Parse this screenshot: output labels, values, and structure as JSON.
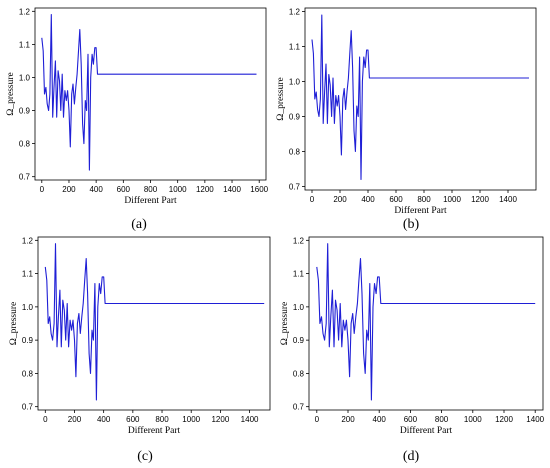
{
  "chart_data": [
    {
      "type": "line",
      "caption": "(a)",
      "xlabel": "Different Part",
      "ylabel": "Ω_pressure",
      "xlim": [
        -50,
        1650
      ],
      "ylim": [
        0.69,
        1.21
      ],
      "xticks": [
        0,
        200,
        400,
        600,
        800,
        1000,
        1200,
        1400,
        1600
      ],
      "yticks": [
        0.7,
        0.8,
        0.9,
        1.0,
        1.1,
        1.2
      ],
      "ytick_labels": [
        "0.7",
        "0.8",
        "0.9",
        "1.0",
        "1.1",
        "1.2"
      ],
      "grid": false,
      "color": "#1f1fd6",
      "series": [
        {
          "x": [
            0,
            10,
            20,
            30,
            40,
            50,
            60,
            70,
            80,
            90,
            100,
            110,
            120,
            130,
            140,
            150,
            160,
            170,
            180,
            190,
            200,
            210,
            220,
            230,
            240,
            250,
            260,
            270,
            280,
            290,
            300,
            310,
            320,
            330,
            340,
            350,
            360,
            370,
            380,
            390,
            400,
            410,
            420,
            430,
            440,
            450,
            460,
            470,
            1580
          ],
          "y": [
            1.12,
            1.08,
            0.95,
            0.97,
            0.92,
            0.9,
            0.95,
            1.19,
            0.88,
            0.97,
            1.05,
            0.88,
            1.02,
            0.99,
            0.9,
            1.01,
            0.88,
            0.96,
            0.93,
            0.96,
            0.9,
            0.79,
            0.95,
            0.98,
            0.92,
            0.97,
            1.01,
            1.08,
            1.145,
            1.04,
            0.86,
            0.8,
            0.93,
            0.9,
            1.07,
            0.72,
            1.0,
            1.07,
            1.04,
            1.09,
            1.09,
            1.01,
            1.01,
            1.01,
            1.01,
            1.01,
            1.01,
            1.01,
            1.01
          ]
        }
      ]
    },
    {
      "type": "line",
      "caption": "(b)",
      "xlabel": "Different Part",
      "ylabel": "Ω_pressure",
      "xlim": [
        -50,
        1600
      ],
      "ylim": [
        0.69,
        1.21
      ],
      "xticks": [
        0,
        200,
        400,
        600,
        800,
        1000,
        1200,
        1400
      ],
      "yticks": [
        0.7,
        0.8,
        0.9,
        1.0,
        1.1,
        1.2
      ],
      "ytick_labels": [
        "0.7",
        "0.8",
        "0.9",
        "1.0",
        "1.1",
        "1.2"
      ],
      "grid": false,
      "color": "#1f1fd6",
      "series": [
        {
          "x": [
            0,
            10,
            20,
            30,
            40,
            50,
            60,
            70,
            80,
            90,
            100,
            110,
            120,
            130,
            140,
            150,
            160,
            170,
            180,
            190,
            200,
            210,
            220,
            230,
            240,
            250,
            260,
            270,
            280,
            290,
            300,
            310,
            320,
            330,
            340,
            350,
            360,
            370,
            380,
            390,
            400,
            410,
            420,
            430,
            440,
            450,
            460,
            470,
            1550
          ],
          "y": [
            1.12,
            1.08,
            0.95,
            0.97,
            0.92,
            0.9,
            0.95,
            1.19,
            0.88,
            0.97,
            1.05,
            0.88,
            1.02,
            0.99,
            0.9,
            1.01,
            0.88,
            0.96,
            0.93,
            0.96,
            0.9,
            0.79,
            0.95,
            0.98,
            0.92,
            0.97,
            1.01,
            1.08,
            1.145,
            1.04,
            0.86,
            0.8,
            0.93,
            0.9,
            1.07,
            0.72,
            1.0,
            1.07,
            1.04,
            1.09,
            1.09,
            1.01,
            1.01,
            1.01,
            1.01,
            1.01,
            1.01,
            1.01,
            1.01
          ]
        }
      ]
    },
    {
      "type": "line",
      "caption": "(c)",
      "xlabel": "Different Part",
      "ylabel": "Ω_pressure",
      "xlim": [
        -50,
        1540
      ],
      "ylim": [
        0.69,
        1.21
      ],
      "xticks": [
        0,
        200,
        400,
        600,
        800,
        1000,
        1200,
        1400
      ],
      "yticks": [
        0.7,
        0.8,
        0.9,
        1.0,
        1.1,
        1.2
      ],
      "ytick_labels": [
        "0.7",
        "0.8",
        "0.9",
        "1.0",
        "1.1",
        "1.2"
      ],
      "grid": false,
      "color": "#1f1fd6",
      "series": [
        {
          "x": [
            0,
            10,
            20,
            30,
            40,
            50,
            60,
            70,
            80,
            90,
            100,
            110,
            120,
            130,
            140,
            150,
            160,
            170,
            180,
            190,
            200,
            210,
            220,
            230,
            240,
            250,
            260,
            270,
            280,
            290,
            300,
            310,
            320,
            330,
            340,
            350,
            360,
            370,
            380,
            390,
            400,
            410,
            420,
            430,
            440,
            450,
            460,
            470,
            1500
          ],
          "y": [
            1.12,
            1.08,
            0.95,
            0.97,
            0.92,
            0.9,
            0.95,
            1.19,
            0.88,
            0.97,
            1.05,
            0.88,
            1.02,
            0.99,
            0.9,
            1.01,
            0.88,
            0.96,
            0.93,
            0.96,
            0.9,
            0.79,
            0.95,
            0.98,
            0.92,
            0.97,
            1.01,
            1.08,
            1.145,
            1.04,
            0.86,
            0.8,
            0.93,
            0.9,
            1.07,
            0.72,
            1.0,
            1.07,
            1.04,
            1.09,
            1.09,
            1.01,
            1.01,
            1.01,
            1.01,
            1.01,
            1.01,
            1.01,
            1.01
          ]
        }
      ]
    },
    {
      "type": "line",
      "caption": "(d)",
      "xlabel": "Different Part",
      "ylabel": "Ω_pressure",
      "xlim": [
        -50,
        1450
      ],
      "ylim": [
        0.69,
        1.21
      ],
      "xticks": [
        0,
        200,
        400,
        600,
        800,
        1000,
        1200,
        1400
      ],
      "yticks": [
        0.7,
        0.8,
        0.9,
        1.0,
        1.1,
        1.2
      ],
      "ytick_labels": [
        "0.7",
        "0.8",
        "0.9",
        "1.0",
        "1.1",
        "1.2"
      ],
      "grid": false,
      "color": "#1f1fd6",
      "series": [
        {
          "x": [
            0,
            10,
            20,
            30,
            40,
            50,
            60,
            70,
            80,
            90,
            100,
            110,
            120,
            130,
            140,
            150,
            160,
            170,
            180,
            190,
            200,
            210,
            220,
            230,
            240,
            250,
            260,
            270,
            280,
            290,
            300,
            310,
            320,
            330,
            340,
            350,
            360,
            370,
            380,
            390,
            400,
            410,
            420,
            430,
            440,
            450,
            460,
            470,
            1400
          ],
          "y": [
            1.12,
            1.08,
            0.95,
            0.97,
            0.92,
            0.9,
            0.95,
            1.19,
            0.88,
            0.97,
            1.05,
            0.88,
            1.02,
            0.99,
            0.9,
            1.01,
            0.88,
            0.96,
            0.93,
            0.96,
            0.9,
            0.79,
            0.95,
            0.98,
            0.92,
            0.97,
            1.01,
            1.08,
            1.145,
            1.04,
            0.86,
            0.8,
            0.93,
            0.9,
            1.07,
            0.72,
            1.0,
            1.07,
            1.04,
            1.09,
            1.09,
            1.01,
            1.01,
            1.01,
            1.01,
            1.01,
            1.01,
            1.01,
            1.01
          ]
        }
      ]
    }
  ]
}
